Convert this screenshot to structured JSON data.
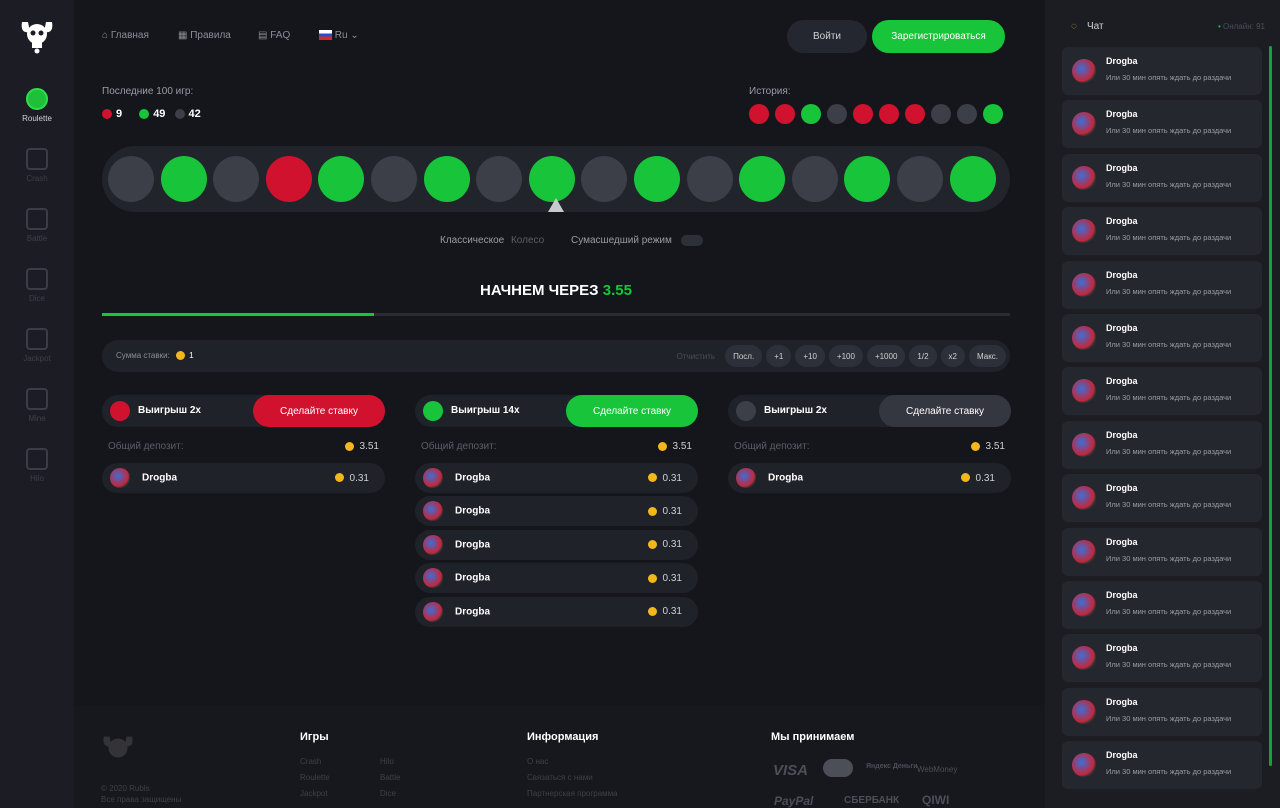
{
  "sidebar": {
    "items": [
      {
        "label": "Roulette",
        "icon": "roulette-icon",
        "active": true
      },
      {
        "label": "Crash",
        "icon": "crash-icon"
      },
      {
        "label": "Battle",
        "icon": "battle-icon"
      },
      {
        "label": "Dice",
        "icon": "dice-icon"
      },
      {
        "label": "Jackpot",
        "icon": "jackpot-icon"
      },
      {
        "label": "Mine",
        "icon": "mine-icon"
      },
      {
        "label": "Hilo",
        "icon": "hilo-icon"
      }
    ]
  },
  "header": {
    "nav": [
      "Главная",
      "Правила",
      "FAQ"
    ],
    "lang": "Ru",
    "login": "Войти",
    "register": "Зарегистрироваться"
  },
  "stats": {
    "label": "Последние 100 игр:",
    "red": "9",
    "green": "49",
    "gray": "42"
  },
  "history": {
    "label": "История:",
    "items": [
      "red",
      "red",
      "green",
      "gray",
      "red",
      "red",
      "red",
      "gray",
      "gray",
      "green"
    ]
  },
  "wheel": [
    "gray",
    "green",
    "gray",
    "red",
    "green",
    "gray",
    "green",
    "gray",
    "green",
    "gray",
    "green",
    "gray",
    "green",
    "gray",
    "green",
    "gray",
    "green"
  ],
  "modes": {
    "classic": "Классическое",
    "wheel": "Колесо",
    "crazy": "Сумасшедший режим"
  },
  "timer": {
    "label": "НАЧНЕМ ЧЕРЕЗ",
    "value": "3.55",
    "progress": 0.3
  },
  "stake": {
    "label": "Сумма ставки:",
    "value": "1",
    "clear": "Отчистить",
    "chips": [
      "Посл.",
      "+1",
      "+10",
      "+100",
      "+1000",
      "1/2",
      "x2",
      "Макс."
    ]
  },
  "columns": [
    {
      "color": "red",
      "title": "Выигрыш 2x",
      "button": "Сделайте ставку",
      "deposit_label": "Общий депозит:",
      "deposit": "3.51",
      "bets": [
        {
          "name": "Drogba",
          "amount": "0.31"
        }
      ]
    },
    {
      "color": "green",
      "title": "Выигрыш 14x",
      "button": "Сделайте ставку",
      "deposit_label": "Общий депозит:",
      "deposit": "3.51",
      "bets": [
        {
          "name": "Drogba",
          "amount": "0.31"
        },
        {
          "name": "Drogba",
          "amount": "0.31"
        },
        {
          "name": "Drogba",
          "amount": "0.31"
        },
        {
          "name": "Drogba",
          "amount": "0.31"
        },
        {
          "name": "Drogba",
          "amount": "0.31"
        }
      ]
    },
    {
      "color": "gray",
      "title": "Выигрыш 2x",
      "button": "Сделайте ставку",
      "deposit_label": "Общий депозит:",
      "deposit": "3.51",
      "bets": [
        {
          "name": "Drogba",
          "amount": "0.31"
        }
      ]
    }
  ],
  "footer": {
    "copyright": "© 2020 Rubls",
    "rights": "Все права защищены",
    "games_title": "Игры",
    "games": [
      "Crash",
      "Roulette",
      "Jackpot",
      "Hilo",
      "Battle",
      "Dice"
    ],
    "info_title": "Информация",
    "info": [
      "О нас",
      "Связаться с нами",
      "Партнерская программа"
    ],
    "pay_title": "Мы принимаем",
    "pay": [
      "VISA",
      "mastercard",
      "Яндекс Деньги",
      "WebMoney",
      "PayPal",
      "СБЕРБАНК",
      "QIWI"
    ]
  },
  "chat": {
    "title": "Чат",
    "online": "Онлайн: 91",
    "messages": [
      {
        "name": "Drogba",
        "text": "Или 30 мин опять ждать до раздачи"
      },
      {
        "name": "Drogba",
        "text": "Или 30 мин опять ждать до раздачи"
      },
      {
        "name": "Drogba",
        "text": "Или 30 мин опять ждать до раздачи"
      },
      {
        "name": "Drogba",
        "text": "Или 30 мин опять ждать до раздачи"
      },
      {
        "name": "Drogba",
        "text": "Или 30 мин опять ждать до раздачи"
      },
      {
        "name": "Drogba",
        "text": "Или 30 мин опять ждать до раздачи"
      },
      {
        "name": "Drogba",
        "text": "Или 30 мин опять ждать до раздачи"
      },
      {
        "name": "Drogba",
        "text": "Или 30 мин опять ждать до раздачи"
      },
      {
        "name": "Drogba",
        "text": "Или 30 мин опять ждать до раздачи"
      },
      {
        "name": "Drogba",
        "text": "Или 30 мин опять ждать до раздачи"
      },
      {
        "name": "Drogba",
        "text": "Или 30 мин опять ждать до раздачи"
      },
      {
        "name": "Drogba",
        "text": "Или 30 мин опять ждать до раздачи"
      },
      {
        "name": "Drogba",
        "text": "Или 30 мин опять ждать до раздачи"
      },
      {
        "name": "Drogba",
        "text": "Или 30 мин опять ждать до раздачи"
      }
    ]
  },
  "colors": {
    "red": "#d0122e",
    "green": "#17c43a",
    "gray": "#3c3e48",
    "bg": "#15161b"
  }
}
